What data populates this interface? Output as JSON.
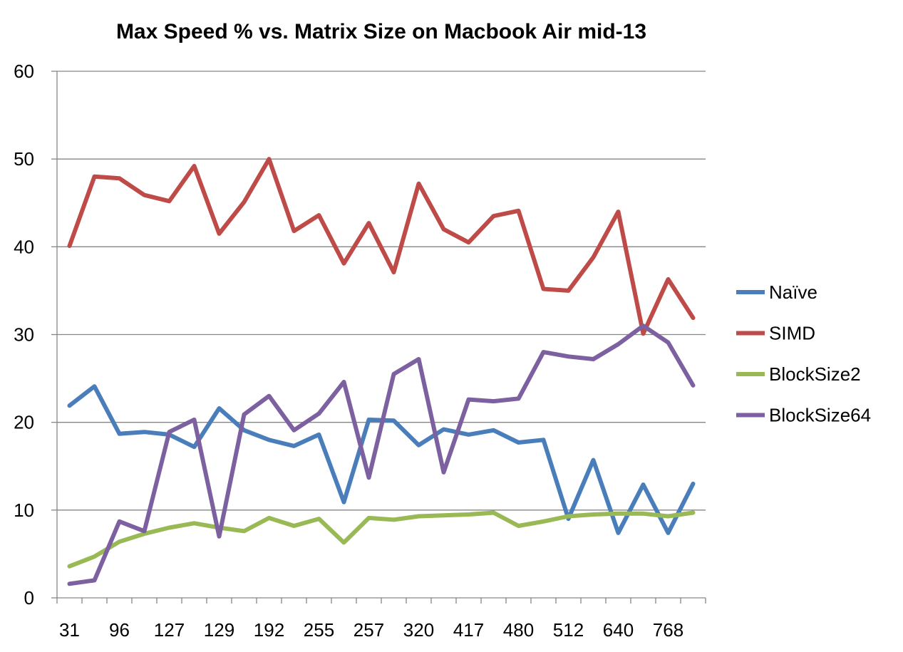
{
  "chart_data": {
    "type": "line",
    "title": "Max Speed % vs. Matrix Size on Macbook Air mid-13",
    "xlabel": "",
    "ylabel": "",
    "ylim": [
      0,
      60
    ],
    "yticks": [
      0,
      10,
      20,
      30,
      40,
      50,
      60
    ],
    "categories": [
      "31",
      "",
      "96",
      "",
      "127",
      "",
      "129",
      "",
      "192",
      "",
      "255",
      "",
      "257",
      "",
      "320",
      "",
      "417",
      "",
      "480",
      "",
      "512",
      "",
      "640",
      "",
      "768",
      ""
    ],
    "grid": "horizontal",
    "legend": "right",
    "colors": {
      "Naïve": "#4a7ebb",
      "SIMD": "#be4b48",
      "BlockSize2": "#98b954",
      "BlockSize64": "#7d60a0",
      "grid": "#868686"
    },
    "series": [
      {
        "name": "Naïve",
        "values": [
          21.9,
          24.1,
          18.7,
          18.9,
          18.6,
          17.2,
          21.6,
          19.1,
          18.0,
          17.3,
          18.6,
          10.9,
          20.3,
          20.2,
          17.4,
          19.2,
          18.6,
          19.1,
          17.7,
          18.0,
          9.0,
          15.7,
          7.4,
          12.9,
          7.4,
          13.0
        ]
      },
      {
        "name": "SIMD",
        "values": [
          40.1,
          48.0,
          47.8,
          45.9,
          45.2,
          49.2,
          41.5,
          45.1,
          50.0,
          41.8,
          43.6,
          38.1,
          42.7,
          37.1,
          47.2,
          42.0,
          40.5,
          43.5,
          44.1,
          35.2,
          35.0,
          38.8,
          44.0,
          30.1,
          36.3,
          31.9
        ]
      },
      {
        "name": "BlockSize2",
        "values": [
          3.6,
          4.7,
          6.4,
          7.3,
          8.0,
          8.5,
          8.0,
          7.6,
          9.1,
          8.2,
          9.0,
          6.3,
          9.1,
          8.9,
          9.3,
          9.4,
          9.5,
          9.7,
          8.2,
          8.7,
          9.3,
          9.5,
          9.6,
          9.6,
          9.3,
          9.7
        ]
      },
      {
        "name": "BlockSize64",
        "values": [
          1.6,
          2.0,
          8.7,
          7.6,
          18.9,
          20.3,
          7.0,
          20.9,
          23.0,
          19.1,
          21.0,
          24.6,
          13.7,
          25.5,
          27.2,
          14.3,
          22.6,
          22.4,
          22.7,
          28.0,
          27.5,
          27.2,
          28.9,
          31.0,
          29.1,
          24.2
        ]
      }
    ]
  }
}
